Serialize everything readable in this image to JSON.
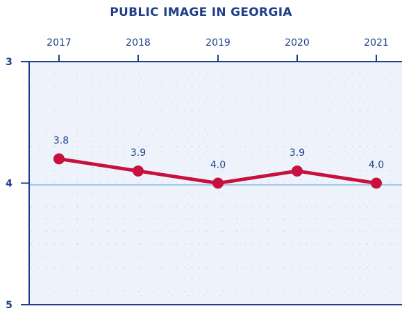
{
  "chart_data": {
    "type": "line",
    "title": "PUBLIC IMAGE IN GEORGIA",
    "categories": [
      "2017",
      "2018",
      "2019",
      "2020",
      "2021"
    ],
    "series": [
      {
        "values": [
          3.8,
          3.9,
          4.0,
          3.9,
          4.0
        ]
      }
    ],
    "data_labels": [
      "3.8",
      "3.9",
      "4.0",
      "3.9",
      "4.0"
    ],
    "y_ticks": [
      "3",
      "4",
      "5"
    ],
    "ylim": [
      3,
      5
    ],
    "y_inverted": true,
    "x_axis_position": "top",
    "grid": "dotted",
    "reference_line_at": 4,
    "colors": {
      "title": "#1f3f8a",
      "axis": "#1f3f8a",
      "line": "#c8103e",
      "plot_bg": "#eef3fb",
      "reference_line": "#9fc6e8",
      "grid": "#b7c3d6"
    }
  }
}
